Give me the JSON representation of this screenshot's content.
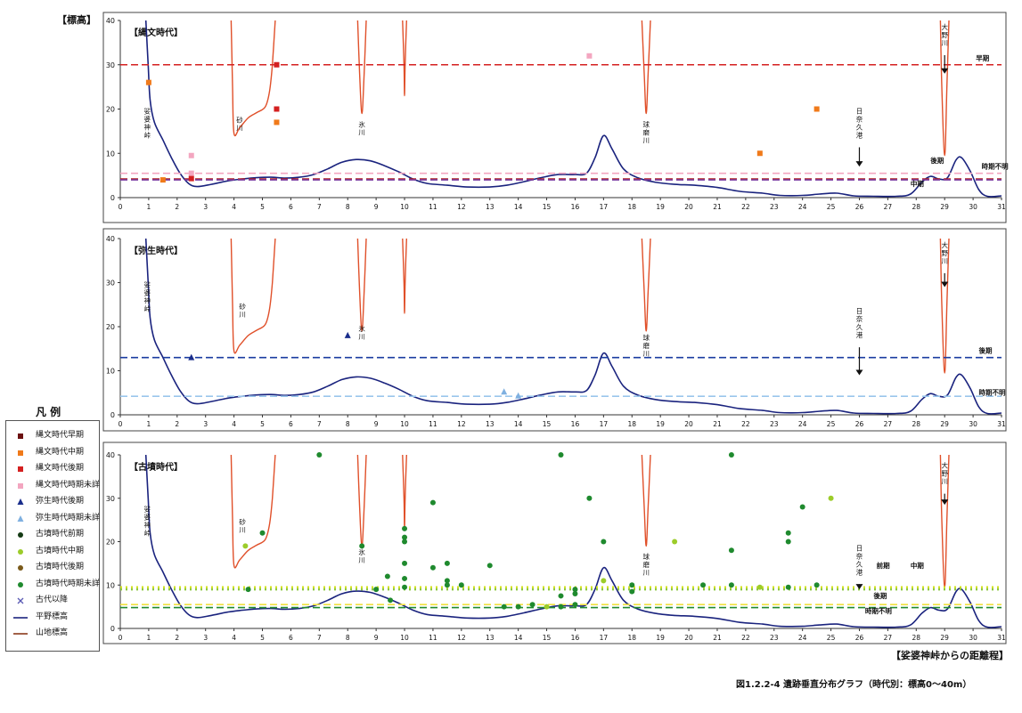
{
  "page": {
    "ylabel": "【標高】",
    "xlabel": "【娑婆神峠からの距離程】",
    "caption": "図1.2.2-4  遺跡垂直分布グラフ（時代別：標高0～40m）",
    "legend_title": "凡  例"
  },
  "legend": [
    {
      "label": "縄文時代早期",
      "marker": "square",
      "color": "#6b1010"
    },
    {
      "label": "縄文時代中期",
      "marker": "square",
      "color": "#f07a1a"
    },
    {
      "label": "縄文時代後期",
      "marker": "square",
      "color": "#d42020"
    },
    {
      "label": "縄文時代時期未詳",
      "marker": "square",
      "color": "#f3a6c0"
    },
    {
      "label": "弥生時代後期",
      "marker": "triangle",
      "color": "#1a2e8c"
    },
    {
      "label": "弥生時代時期未詳",
      "marker": "triangle",
      "color": "#7fb0e0"
    },
    {
      "label": "古墳時代前期",
      "marker": "circle",
      "color": "#143a14"
    },
    {
      "label": "古墳時代中期",
      "marker": "circle",
      "color": "#9ccc2a"
    },
    {
      "label": "古墳時代後期",
      "marker": "circle",
      "color": "#7a5a1a"
    },
    {
      "label": "古墳時代時期未詳",
      "marker": "circle",
      "color": "#1f8a2e"
    },
    {
      "label": "古代以降",
      "marker": "x",
      "color": "#5a5ab4"
    },
    {
      "label": "平野標高",
      "marker": "line",
      "color": "#1a237e"
    },
    {
      "label": "山地標高",
      "marker": "line",
      "color": "#8b3a1a"
    }
  ],
  "chart_data": [
    {
      "type": "scatter",
      "title": "【縄文時代】",
      "xlim": [
        0,
        31
      ],
      "ylim": [
        0,
        40
      ],
      "x_ticks": [
        0,
        1,
        2,
        3,
        4,
        5,
        6,
        7,
        8,
        9,
        10,
        11,
        12,
        13,
        14,
        15,
        16,
        17,
        18,
        19,
        20,
        21,
        22,
        23,
        24,
        25,
        26,
        27,
        28,
        29,
        30,
        31
      ],
      "y_ticks": [
        0,
        10,
        20,
        30,
        40
      ],
      "plain_profile": [
        [
          0.9,
          40
        ],
        [
          0.98,
          30
        ],
        [
          1.05,
          22
        ],
        [
          1.2,
          17
        ],
        [
          1.5,
          13
        ],
        [
          1.8,
          9
        ],
        [
          2.1,
          5.5
        ],
        [
          2.4,
          3.2
        ],
        [
          2.7,
          2.5
        ],
        [
          3.2,
          3
        ],
        [
          3.8,
          3.8
        ],
        [
          4.3,
          4.2
        ],
        [
          4.8,
          4.5
        ],
        [
          5.3,
          4.6
        ],
        [
          5.8,
          4.4
        ],
        [
          6.3,
          4.6
        ],
        [
          6.8,
          5.2
        ],
        [
          7.3,
          6.5
        ],
        [
          7.8,
          8
        ],
        [
          8.3,
          8.6
        ],
        [
          8.8,
          8.3
        ],
        [
          9.3,
          7.2
        ],
        [
          9.8,
          5.8
        ],
        [
          10.3,
          4.2
        ],
        [
          10.8,
          3.2
        ],
        [
          11.5,
          2.8
        ],
        [
          12.2,
          2.4
        ],
        [
          13,
          2.4
        ],
        [
          13.6,
          2.8
        ],
        [
          14.2,
          3.6
        ],
        [
          14.8,
          4.5
        ],
        [
          15.4,
          5.2
        ],
        [
          16,
          5.2
        ],
        [
          16.4,
          5.5
        ],
        [
          16.7,
          9
        ],
        [
          17,
          14
        ],
        [
          17.3,
          11
        ],
        [
          17.7,
          6.5
        ],
        [
          18.2,
          4.5
        ],
        [
          18.8,
          3.5
        ],
        [
          19.5,
          3
        ],
        [
          20.2,
          2.8
        ],
        [
          21,
          2.3
        ],
        [
          21.8,
          1.4
        ],
        [
          22.6,
          1
        ],
        [
          23.2,
          0.5
        ],
        [
          24,
          0.5
        ],
        [
          24.6,
          0.8
        ],
        [
          25.2,
          1
        ],
        [
          25.8,
          0.4
        ],
        [
          26.5,
          0.3
        ],
        [
          27.3,
          0.3
        ],
        [
          27.8,
          0.8
        ],
        [
          28.2,
          3.5
        ],
        [
          28.5,
          4.8
        ],
        [
          28.8,
          4.2
        ],
        [
          29.1,
          4.5
        ],
        [
          29.4,
          8.5
        ],
        [
          29.6,
          9
        ],
        [
          29.9,
          6
        ],
        [
          30.2,
          1.8
        ],
        [
          30.5,
          0.3
        ],
        [
          31,
          0.4
        ]
      ],
      "mountain_profiles": [
        [
          [
            3.9,
            40
          ],
          [
            3.95,
            25
          ],
          [
            4.0,
            14.5
          ],
          [
            4.2,
            15.8
          ],
          [
            4.5,
            18
          ],
          [
            4.8,
            19.2
          ],
          [
            5.1,
            20.5
          ],
          [
            5.25,
            24
          ],
          [
            5.35,
            30
          ],
          [
            5.45,
            40
          ]
        ],
        [
          [
            8.35,
            40
          ],
          [
            8.42,
            28
          ],
          [
            8.5,
            19
          ],
          [
            8.58,
            28
          ],
          [
            8.65,
            40
          ]
        ],
        [
          [
            9.93,
            40
          ],
          [
            9.98,
            30
          ],
          [
            10.0,
            23
          ],
          [
            10.02,
            30
          ],
          [
            10.07,
            40
          ]
        ],
        [
          [
            18.35,
            40
          ],
          [
            18.43,
            28
          ],
          [
            18.5,
            19
          ],
          [
            18.57,
            28
          ],
          [
            18.65,
            40
          ]
        ],
        [
          [
            28.85,
            40
          ],
          [
            28.9,
            25
          ],
          [
            29.0,
            9.5
          ],
          [
            29.08,
            25
          ],
          [
            29.15,
            40
          ]
        ]
      ],
      "reference_lines": [
        {
          "y": 30,
          "label": "早期",
          "color": "#d42020"
        },
        {
          "y": 5.5,
          "label": "後期",
          "color": "#f3a6c0"
        },
        {
          "y": 4.2,
          "label": "中期",
          "color": "#b02020"
        },
        {
          "y": 4.0,
          "label": "時期不明",
          "color": "#7a3aa0"
        }
      ],
      "points": [
        {
          "x": 1.0,
          "y": 26,
          "group": "縄文時代中期"
        },
        {
          "x": 1.5,
          "y": 4,
          "group": "縄文時代中期"
        },
        {
          "x": 2.5,
          "y": 9.5,
          "group": "縄文時代時期未詳"
        },
        {
          "x": 2.5,
          "y": 5.5,
          "group": "縄文時代時期未詳"
        },
        {
          "x": 2.5,
          "y": 4.3,
          "group": "縄文時代後期"
        },
        {
          "x": 5.5,
          "y": 30,
          "group": "縄文時代後期"
        },
        {
          "x": 5.5,
          "y": 20,
          "group": "縄文時代後期"
        },
        {
          "x": 5.5,
          "y": 17,
          "group": "縄文時代中期"
        },
        {
          "x": 16.5,
          "y": 32,
          "group": "縄文時代時期未詳"
        },
        {
          "x": 22.5,
          "y": 10,
          "group": "縄文時代中期"
        },
        {
          "x": 24.5,
          "y": 20,
          "group": "縄文時代中期"
        }
      ],
      "annotations": [
        {
          "text": "娑婆神峠",
          "x": 0.95,
          "y": 19,
          "vertical": true
        },
        {
          "text": "砂川",
          "x": 4.2,
          "y": 17,
          "vertical": true
        },
        {
          "text": "氷川",
          "x": 8.5,
          "y": 16,
          "vertical": true
        },
        {
          "text": "球磨川",
          "x": 18.5,
          "y": 16,
          "vertical": true
        },
        {
          "text": "日奈久港",
          "x": 26,
          "y": 19,
          "vertical": true,
          "arrow_to": 7
        },
        {
          "text": "大野川",
          "x": 29,
          "y": 38,
          "vertical": true,
          "arrow_to": 28
        },
        {
          "text": "早期",
          "x": 30.1,
          "y": 31
        },
        {
          "text": "後期",
          "x": 28.5,
          "y": 7.8
        },
        {
          "text": "時期不明",
          "x": 30.3,
          "y": 6.5
        },
        {
          "text": "中期",
          "x": 27.8,
          "y": 2.6
        }
      ]
    },
    {
      "type": "scatter",
      "title": "【弥生時代】",
      "xlim": [
        0,
        31
      ],
      "ylim": [
        0,
        40
      ],
      "x_ticks": [
        0,
        1,
        2,
        3,
        4,
        5,
        6,
        7,
        8,
        9,
        10,
        11,
        12,
        13,
        14,
        15,
        16,
        17,
        18,
        19,
        20,
        21,
        22,
        23,
        24,
        25,
        26,
        27,
        28,
        29,
        30,
        31
      ],
      "y_ticks": [
        0,
        10,
        20,
        30,
        40
      ],
      "reference_lines": [
        {
          "y": 13,
          "label": "後期",
          "color": "#1a3ca0"
        },
        {
          "y": 4.2,
          "label": "時期不明",
          "color": "#9ac6ec"
        }
      ],
      "points": [
        {
          "x": 2.5,
          "y": 13,
          "group": "弥生時代後期"
        },
        {
          "x": 8.0,
          "y": 18,
          "group": "弥生時代後期"
        },
        {
          "x": 13.5,
          "y": 5.2,
          "group": "弥生時代時期未詳"
        },
        {
          "x": 14.0,
          "y": 4.3,
          "group": "弥生時代時期未詳"
        }
      ],
      "annotations": [
        {
          "text": "娑婆神峠",
          "x": 0.95,
          "y": 29,
          "vertical": true
        },
        {
          "text": "砂川",
          "x": 4.3,
          "y": 24,
          "vertical": true
        },
        {
          "text": "氷川",
          "x": 8.5,
          "y": 19,
          "vertical": true
        },
        {
          "text": "球磨川",
          "x": 18.5,
          "y": 17,
          "vertical": true
        },
        {
          "text": "日奈久港",
          "x": 26,
          "y": 23,
          "vertical": true,
          "arrow_to": 9
        },
        {
          "text": "大野川",
          "x": 29,
          "y": 38,
          "vertical": true,
          "arrow_to": 29
        },
        {
          "text": "後期",
          "x": 30.2,
          "y": 14
        },
        {
          "text": "時期不明",
          "x": 30.2,
          "y": 4.5
        }
      ]
    },
    {
      "type": "scatter",
      "title": "【古墳時代】",
      "xlim": [
        0,
        31
      ],
      "ylim": [
        0,
        40
      ],
      "x_ticks": [
        0,
        1,
        2,
        3,
        4,
        5,
        6,
        7,
        8,
        9,
        10,
        11,
        12,
        13,
        14,
        15,
        16,
        17,
        18,
        19,
        20,
        21,
        22,
        23,
        24,
        25,
        26,
        27,
        28,
        29,
        30,
        31
      ],
      "y_ticks": [
        0,
        10,
        20,
        30,
        40
      ],
      "reference_lines": [
        {
          "y": 9.5,
          "label": "中期",
          "color": "#d0e01a",
          "dotted": true
        },
        {
          "y": 9.0,
          "label": "前期",
          "color": "#8cc63e",
          "dotted": true
        },
        {
          "y": 5.5,
          "label": "後期",
          "color": "#f0e040"
        },
        {
          "y": 4.8,
          "label": "時期不明",
          "color": "#1f8a2e"
        }
      ],
      "points": [
        {
          "x": 4.4,
          "y": 19,
          "group": "古墳時代中期"
        },
        {
          "x": 4.5,
          "y": 9,
          "group": "古墳時代時期未詳"
        },
        {
          "x": 5.0,
          "y": 22,
          "group": "古墳時代時期未詳"
        },
        {
          "x": 7.0,
          "y": 40,
          "group": "古墳時代時期未詳"
        },
        {
          "x": 8.5,
          "y": 19,
          "group": "古墳時代時期未詳"
        },
        {
          "x": 9.0,
          "y": 9,
          "group": "古墳時代時期未詳"
        },
        {
          "x": 9.4,
          "y": 12,
          "group": "古墳時代時期未詳"
        },
        {
          "x": 9.5,
          "y": 6.5,
          "group": "古墳時代時期未詳"
        },
        {
          "x": 10.0,
          "y": 23,
          "group": "古墳時代時期未詳"
        },
        {
          "x": 10.0,
          "y": 21,
          "group": "古墳時代時期未詳"
        },
        {
          "x": 10.0,
          "y": 20,
          "group": "古墳時代時期未詳"
        },
        {
          "x": 10.0,
          "y": 15,
          "group": "古墳時代時期未詳"
        },
        {
          "x": 10.0,
          "y": 11.5,
          "group": "古墳時代時期未詳"
        },
        {
          "x": 10.0,
          "y": 9.5,
          "group": "古墳時代時期未詳"
        },
        {
          "x": 11.0,
          "y": 29,
          "group": "古墳時代時期未詳"
        },
        {
          "x": 11.0,
          "y": 14,
          "group": "古墳時代時期未詳"
        },
        {
          "x": 11.5,
          "y": 15,
          "group": "古墳時代時期未詳"
        },
        {
          "x": 11.5,
          "y": 11,
          "group": "古墳時代時期未詳"
        },
        {
          "x": 11.5,
          "y": 10,
          "group": "古墳時代時期未詳"
        },
        {
          "x": 12.0,
          "y": 10,
          "group": "古墳時代時期未詳"
        },
        {
          "x": 13.0,
          "y": 14.5,
          "group": "古墳時代時期未詳"
        },
        {
          "x": 13.5,
          "y": 5,
          "group": "古墳時代時期未詳"
        },
        {
          "x": 14.0,
          "y": 5,
          "group": "古墳時代時期未詳"
        },
        {
          "x": 14.5,
          "y": 5.5,
          "group": "古墳時代時期未詳"
        },
        {
          "x": 15.0,
          "y": 5,
          "group": "古墳時代中期"
        },
        {
          "x": 15.5,
          "y": 40,
          "group": "古墳時代時期未詳"
        },
        {
          "x": 15.5,
          "y": 7.5,
          "group": "古墳時代時期未詳"
        },
        {
          "x": 15.5,
          "y": 5,
          "group": "古墳時代時期未詳"
        },
        {
          "x": 16.0,
          "y": 9,
          "group": "古墳時代時期未詳"
        },
        {
          "x": 16.0,
          "y": 8,
          "group": "古墳時代時期未詳"
        },
        {
          "x": 16.0,
          "y": 5.5,
          "group": "古墳時代時期未詳"
        },
        {
          "x": 16.5,
          "y": 30,
          "group": "古墳時代時期未詳"
        },
        {
          "x": 17.0,
          "y": 20,
          "group": "古墳時代時期未詳"
        },
        {
          "x": 17.0,
          "y": 11,
          "group": "古墳時代中期"
        },
        {
          "x": 18.0,
          "y": 10,
          "group": "古墳時代時期未詳"
        },
        {
          "x": 18.0,
          "y": 8.5,
          "group": "古墳時代時期未詳"
        },
        {
          "x": 19.5,
          "y": 20,
          "group": "古墳時代中期"
        },
        {
          "x": 20.5,
          "y": 10,
          "group": "古墳時代時期未詳"
        },
        {
          "x": 21.5,
          "y": 40,
          "group": "古墳時代時期未詳"
        },
        {
          "x": 21.5,
          "y": 18,
          "group": "古墳時代時期未詳"
        },
        {
          "x": 21.5,
          "y": 10,
          "group": "古墳時代時期未詳"
        },
        {
          "x": 22.5,
          "y": 9.5,
          "group": "古墳時代中期"
        },
        {
          "x": 23.5,
          "y": 22,
          "group": "古墳時代時期未詳"
        },
        {
          "x": 23.5,
          "y": 20,
          "group": "古墳時代時期未詳"
        },
        {
          "x": 23.5,
          "y": 9.5,
          "group": "古墳時代時期未詳"
        },
        {
          "x": 24.0,
          "y": 28,
          "group": "古墳時代時期未詳"
        },
        {
          "x": 24.5,
          "y": 10,
          "group": "古墳時代時期未詳"
        },
        {
          "x": 25.0,
          "y": 30,
          "group": "古墳時代中期"
        }
      ],
      "annotations": [
        {
          "text": "娑婆神峠",
          "x": 0.95,
          "y": 27,
          "vertical": true
        },
        {
          "text": "砂川",
          "x": 4.3,
          "y": 24,
          "vertical": true
        },
        {
          "text": "氷川",
          "x": 8.5,
          "y": 17,
          "vertical": true
        },
        {
          "text": "球磨川",
          "x": 18.5,
          "y": 16,
          "vertical": true
        },
        {
          "text": "日奈久港",
          "x": 26,
          "y": 18,
          "vertical": true,
          "arrow_to": 9
        },
        {
          "text": "大野川",
          "x": 29,
          "y": 37,
          "vertical": true,
          "arrow_to": 28.5
        },
        {
          "text": "前期",
          "x": 26.6,
          "y": 14
        },
        {
          "text": "中期",
          "x": 27.8,
          "y": 14
        },
        {
          "text": "後期",
          "x": 26.5,
          "y": 7
        },
        {
          "text": "時期不明",
          "x": 26.2,
          "y": 3.5
        }
      ]
    }
  ]
}
